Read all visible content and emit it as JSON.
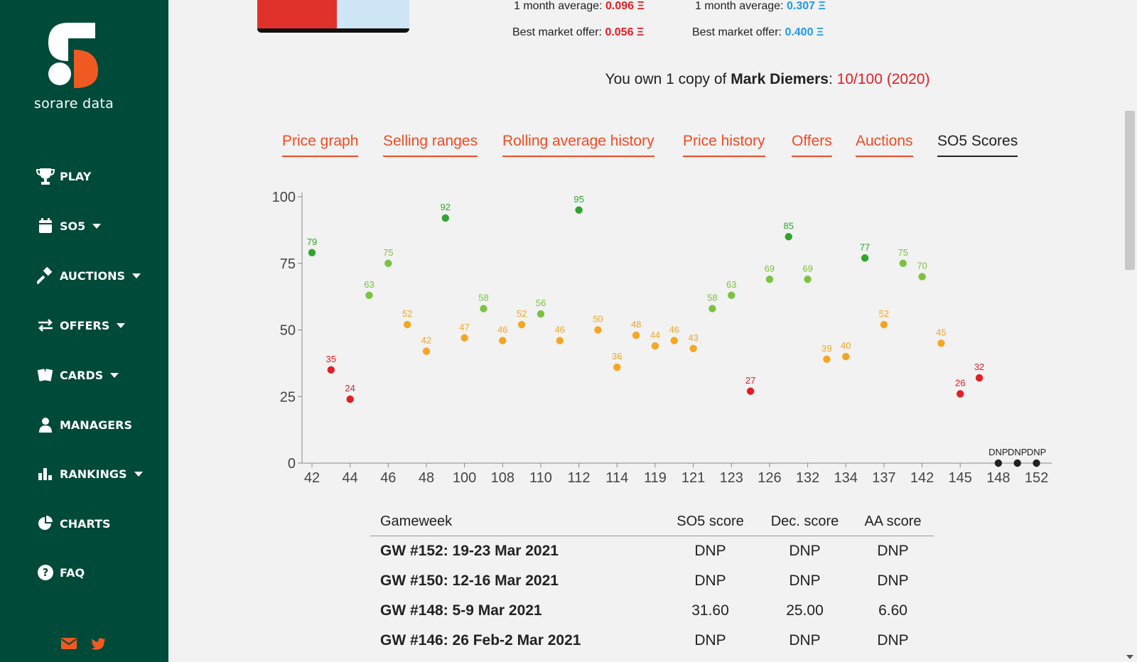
{
  "sidebar": {
    "brand": "sorare data",
    "items": [
      {
        "label": "PLAY",
        "icon": "trophy-icon",
        "caret": false
      },
      {
        "label": "SO5",
        "icon": "calendar-icon",
        "caret": true
      },
      {
        "label": "AUCTIONS",
        "icon": "gavel-icon",
        "caret": true
      },
      {
        "label": "OFFERS",
        "icon": "exchange-icon",
        "caret": true
      },
      {
        "label": "CARDS",
        "icon": "cards-icon",
        "caret": true
      },
      {
        "label": "MANAGERS",
        "icon": "user-icon",
        "caret": false
      },
      {
        "label": "RANKINGS",
        "icon": "bar-chart-icon",
        "caret": true
      },
      {
        "label": "CHARTS",
        "icon": "pie-chart-icon",
        "caret": false
      },
      {
        "label": "FAQ",
        "icon": "question-icon",
        "caret": false
      }
    ],
    "footer_icons": [
      "mail-icon",
      "twitter-icon"
    ]
  },
  "stats": {
    "left_avg_label": "1 month average:",
    "left_avg_value": "0.096 Ξ",
    "left_offer_label": "Best market offer:",
    "left_offer_value": "0.056 Ξ",
    "right_avg_label": "1 month average:",
    "right_avg_value": "0.307 Ξ",
    "right_offer_label": "Best market offer:",
    "right_offer_value": "0.400 Ξ"
  },
  "ownership": {
    "prefix": "You own 1 copy of",
    "player": "Mark Diemers",
    "colon": ":",
    "card": "10/100 (2020)"
  },
  "tabs": [
    {
      "label": "Price graph",
      "active": false
    },
    {
      "label": "Selling ranges",
      "active": false
    },
    {
      "label": "Rolling average history",
      "active": false
    },
    {
      "label": "Price history",
      "active": false
    },
    {
      "label": "Offers",
      "active": false
    },
    {
      "label": "Auctions",
      "active": false
    },
    {
      "label": "SO5 Scores",
      "active": true
    }
  ],
  "chart_data": {
    "type": "scatter",
    "ylim": [
      0,
      100
    ],
    "yticks": [
      0,
      25,
      50,
      75,
      100
    ],
    "xtick_labels": [
      "42",
      "44",
      "46",
      "48",
      "100",
      "108",
      "110",
      "112",
      "114",
      "119",
      "121",
      "123",
      "126",
      "132",
      "134",
      "137",
      "142",
      "145",
      "148",
      "152"
    ],
    "points": [
      {
        "value": 79,
        "label": "79"
      },
      {
        "value": 35,
        "label": "35"
      },
      {
        "value": 24,
        "label": "24"
      },
      {
        "value": 63,
        "label": "63"
      },
      {
        "value": 75,
        "label": "75"
      },
      {
        "value": 52,
        "label": "52"
      },
      {
        "value": 42,
        "label": "42"
      },
      {
        "value": 92,
        "label": "92"
      },
      {
        "value": 47,
        "label": "47"
      },
      {
        "value": 58,
        "label": "58"
      },
      {
        "value": 46,
        "label": "46"
      },
      {
        "value": 52,
        "label": "52"
      },
      {
        "value": 56,
        "label": "56"
      },
      {
        "value": 46,
        "label": "46"
      },
      {
        "value": 95,
        "label": "95"
      },
      {
        "value": 50,
        "label": "50"
      },
      {
        "value": 36,
        "label": "36"
      },
      {
        "value": 48,
        "label": "48"
      },
      {
        "value": 44,
        "label": "44"
      },
      {
        "value": 46,
        "label": "46"
      },
      {
        "value": 43,
        "label": "43"
      },
      {
        "value": 58,
        "label": "58"
      },
      {
        "value": 63,
        "label": "63"
      },
      {
        "value": 27,
        "label": "27"
      },
      {
        "value": 69,
        "label": "69"
      },
      {
        "value": 85,
        "label": "85"
      },
      {
        "value": 69,
        "label": "69"
      },
      {
        "value": 39,
        "label": "39"
      },
      {
        "value": 40,
        "label": "40"
      },
      {
        "value": 77,
        "label": "77"
      },
      {
        "value": 52,
        "label": "52"
      },
      {
        "value": 75,
        "label": "75"
      },
      {
        "value": 70,
        "label": "70"
      },
      {
        "value": 45,
        "label": "45"
      },
      {
        "value": 26,
        "label": "26"
      },
      {
        "value": 32,
        "label": "32"
      },
      {
        "value": 0,
        "label": "DNP"
      },
      {
        "value": 0,
        "label": "DNP"
      },
      {
        "value": 0,
        "label": "DNP"
      }
    ],
    "colors": {
      "red": "#e31e24",
      "orange": "#f5a623",
      "lightgreen": "#7cc242",
      "darkgreen": "#2ea52e",
      "dnp": "#222222"
    },
    "grid": false
  },
  "table": {
    "headers": [
      "Gameweek",
      "SO5 score",
      "Dec. score",
      "AA score"
    ],
    "rows": [
      [
        "GW #152: 19-23 Mar 2021",
        "DNP",
        "DNP",
        "DNP"
      ],
      [
        "GW #150: 12-16 Mar 2021",
        "DNP",
        "DNP",
        "DNP"
      ],
      [
        "GW #148: 5-9 Mar 2021",
        "31.60",
        "25.00",
        "6.60"
      ],
      [
        "GW #146: 26 Feb-2 Mar 2021",
        "DNP",
        "DNP",
        "DNP"
      ]
    ]
  }
}
